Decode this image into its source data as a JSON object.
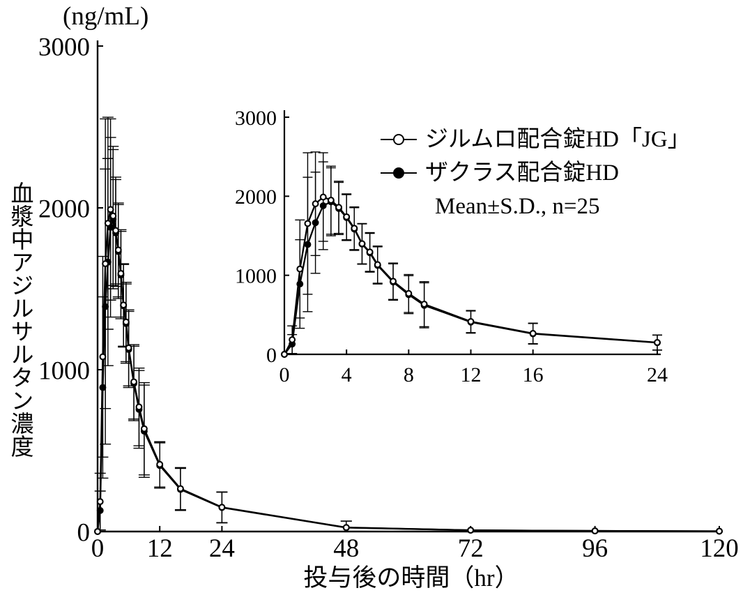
{
  "chart_data": {
    "type": "line",
    "title": "",
    "ylabel_unit": "(ng/mL)",
    "ylabel": "血漿中アジルサルタン濃度",
    "xlabel": "投与後の時間（hr）",
    "annotation": "Mean±S.D., n=25",
    "x": [
      0,
      0.5,
      1,
      1.5,
      2,
      2.5,
      3,
      3.5,
      4,
      4.5,
      5,
      5.5,
      6,
      7,
      8,
      9,
      12,
      16,
      24,
      48,
      72,
      96,
      120
    ],
    "series": [
      {
        "name": "ジルムロ配合錠HD「JG」",
        "marker": "open-circle",
        "mean": [
          0,
          185,
          1080,
          1655,
          1905,
          1990,
          1950,
          1860,
          1740,
          1595,
          1400,
          1295,
          1135,
          925,
          770,
          635,
          415,
          265,
          150,
          25,
          8,
          4,
          2
        ],
        "sd": [
          0,
          175,
          620,
          895,
          655,
          560,
          430,
          330,
          290,
          270,
          255,
          245,
          235,
          230,
          240,
          285,
          140,
          130,
          95,
          40,
          0,
          0,
          0
        ]
      },
      {
        "name": "ザクラス配合錠HD",
        "marker": "filled-circle",
        "mean": [
          0,
          130,
          890,
          1390,
          1665,
          1880,
          1930,
          1845,
          1730,
          1585,
          1395,
          1285,
          1125,
          915,
          755,
          620,
          408,
          260,
          148,
          24,
          8,
          4,
          2
        ],
        "sd": [
          0,
          120,
          560,
          850,
          640,
          555,
          430,
          330,
          290,
          270,
          255,
          245,
          235,
          230,
          240,
          285,
          140,
          130,
          95,
          40,
          0,
          0,
          0
        ]
      }
    ],
    "main_axis": {
      "xlim": [
        0,
        120
      ],
      "ylim": [
        0,
        3000
      ],
      "x_ticks": [
        0,
        12,
        24,
        48,
        72,
        96,
        120
      ],
      "y_ticks": [
        0,
        1000,
        2000,
        3000
      ],
      "grid": false
    },
    "inset_axis": {
      "xlim": [
        0,
        24
      ],
      "ylim": [
        0,
        3000
      ],
      "x_ticks": [
        0,
        4,
        8,
        12,
        16,
        24
      ],
      "y_ticks": [
        0,
        1000,
        2000,
        3000
      ],
      "grid": false
    },
    "legend_position": "inset-top-right",
    "colors": {
      "foreground": "#000000",
      "background": "#ffffff"
    }
  }
}
